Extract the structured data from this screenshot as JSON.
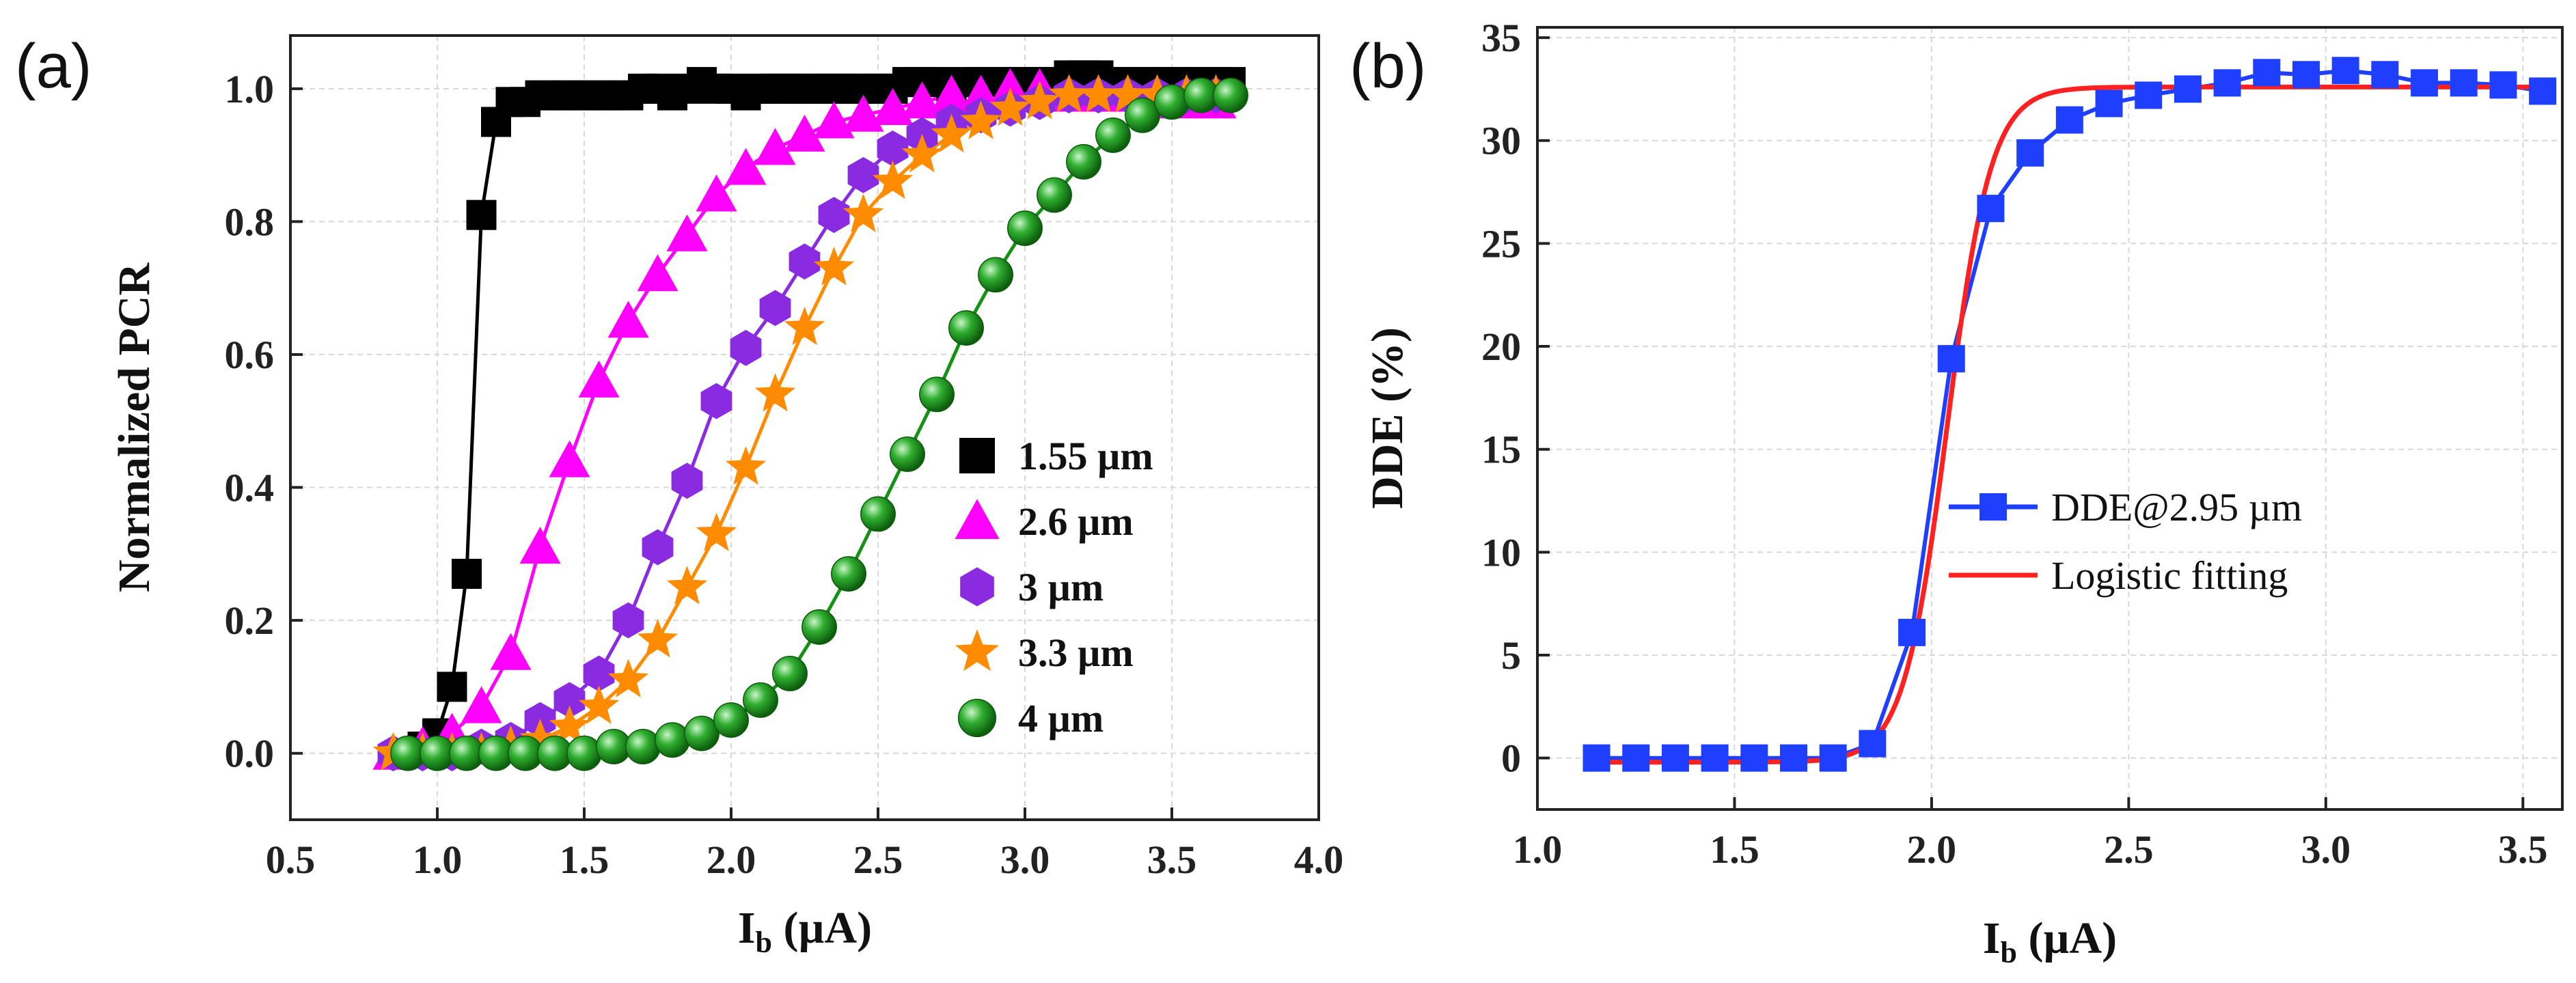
{
  "chart_data": [
    {
      "panel": "(a)",
      "type": "line",
      "xlabel_main": "I",
      "xlabel_sub": "b",
      "xlabel_unit": " (µA)",
      "ylabel": "Normalized PCR",
      "xlim": [
        0.5,
        4.0
      ],
      "ylim": [
        -0.1,
        1.08
      ],
      "xticks": [
        "0.5",
        "1.0",
        "1.5",
        "2.0",
        "2.5",
        "3.0",
        "3.5",
        "4.0"
      ],
      "xtick_values": [
        0.5,
        1.0,
        1.5,
        2.0,
        2.5,
        3.0,
        3.5,
        4.0
      ],
      "yticks": [
        "0.0",
        "0.2",
        "0.4",
        "0.6",
        "0.8",
        "1.0"
      ],
      "ytick_values": [
        0.0,
        0.2,
        0.4,
        0.6,
        0.8,
        1.0
      ],
      "grid": true,
      "legend_position": "lower-right",
      "series": [
        {
          "name": "1.55 µm",
          "color": "#000000",
          "marker": "square",
          "x": [
            0.9,
            0.95,
            1.0,
            1.05,
            1.1,
            1.15,
            1.2,
            1.25,
            1.3,
            1.35,
            1.4,
            1.45,
            1.5,
            1.55,
            1.6,
            1.65,
            1.7,
            1.75,
            1.8,
            1.85,
            1.9,
            1.95,
            2.0,
            2.05,
            2.1,
            2.15,
            2.2,
            2.25,
            2.3,
            2.35,
            2.4,
            2.45,
            2.5,
            2.55,
            2.6,
            2.65,
            2.7,
            2.75,
            2.8,
            2.85,
            2.9,
            2.95,
            3.0,
            3.05,
            3.1,
            3.15,
            3.2,
            3.25,
            3.3,
            3.35,
            3.4,
            3.45,
            3.5,
            3.55,
            3.6,
            3.65,
            3.7
          ],
          "y": [
            0.0,
            0.01,
            0.03,
            0.1,
            0.27,
            0.81,
            0.95,
            0.98,
            0.98,
            0.99,
            0.99,
            0.99,
            0.99,
            0.99,
            0.99,
            0.99,
            1.0,
            1.0,
            0.99,
            1.0,
            1.01,
            1.0,
            1.0,
            0.99,
            1.0,
            1.0,
            1.0,
            1.0,
            1.0,
            1.0,
            1.0,
            1.0,
            1.0,
            1.0,
            1.01,
            1.01,
            1.01,
            1.0,
            1.01,
            1.01,
            1.01,
            1.01,
            1.01,
            1.01,
            1.01,
            1.02,
            1.02,
            1.02,
            1.01,
            1.01,
            1.01,
            1.01,
            1.01,
            1.01,
            1.01,
            1.01,
            1.01
          ]
        },
        {
          "name": "2.6 µm",
          "color": "#ff00ff",
          "marker": "triangle",
          "x": [
            0.85,
            0.95,
            1.05,
            1.15,
            1.25,
            1.35,
            1.45,
            1.55,
            1.65,
            1.75,
            1.85,
            1.95,
            2.05,
            2.15,
            2.25,
            2.35,
            2.45,
            2.55,
            2.65,
            2.75,
            2.85,
            2.95,
            3.05,
            3.15,
            3.25,
            3.35,
            3.45,
            3.55,
            3.65
          ],
          "y": [
            0.0,
            0.01,
            0.03,
            0.07,
            0.15,
            0.31,
            0.44,
            0.56,
            0.65,
            0.72,
            0.78,
            0.84,
            0.88,
            0.91,
            0.93,
            0.95,
            0.96,
            0.97,
            0.98,
            0.99,
            0.99,
            1.0,
            1.0,
            0.99,
            0.99,
            0.99,
            0.98,
            0.98,
            0.98
          ]
        },
        {
          "name": "3 µm",
          "color": "#8a2be2",
          "marker": "hexagon",
          "x": [
            0.85,
            0.95,
            1.05,
            1.15,
            1.25,
            1.35,
            1.45,
            1.55,
            1.65,
            1.75,
            1.85,
            1.95,
            2.05,
            2.15,
            2.25,
            2.35,
            2.45,
            2.55,
            2.65,
            2.75,
            2.85,
            2.95,
            3.05,
            3.15,
            3.25,
            3.35,
            3.45,
            3.55,
            3.65
          ],
          "y": [
            0.0,
            0.0,
            0.0,
            0.01,
            0.02,
            0.05,
            0.08,
            0.12,
            0.2,
            0.31,
            0.41,
            0.53,
            0.61,
            0.67,
            0.74,
            0.81,
            0.87,
            0.91,
            0.93,
            0.95,
            0.96,
            0.97,
            0.98,
            0.99,
            0.99,
            0.99,
            0.99,
            0.99,
            0.99
          ]
        },
        {
          "name": "3.3 µm",
          "color": "#ff8c00",
          "marker": "star",
          "x": [
            0.85,
            0.95,
            1.05,
            1.15,
            1.25,
            1.35,
            1.45,
            1.55,
            1.65,
            1.75,
            1.85,
            1.95,
            2.05,
            2.15,
            2.25,
            2.35,
            2.45,
            2.55,
            2.65,
            2.75,
            2.85,
            2.95,
            3.05,
            3.15,
            3.25,
            3.35,
            3.45,
            3.55,
            3.65
          ],
          "y": [
            0.0,
            0.0,
            0.0,
            0.0,
            0.01,
            0.02,
            0.04,
            0.07,
            0.11,
            0.17,
            0.25,
            0.33,
            0.43,
            0.54,
            0.64,
            0.73,
            0.81,
            0.86,
            0.9,
            0.93,
            0.95,
            0.97,
            0.98,
            0.99,
            0.99,
            0.99,
            0.99,
            0.99,
            0.99
          ]
        },
        {
          "name": "4 µm",
          "color": "#149214",
          "marker": "sphere",
          "x": [
            0.9,
            1.0,
            1.1,
            1.2,
            1.3,
            1.4,
            1.5,
            1.6,
            1.7,
            1.8,
            1.9,
            2.0,
            2.1,
            2.2,
            2.3,
            2.4,
            2.5,
            2.6,
            2.7,
            2.8,
            2.9,
            3.0,
            3.1,
            3.2,
            3.3,
            3.4,
            3.5,
            3.6,
            3.7
          ],
          "y": [
            0.0,
            0.0,
            0.0,
            0.0,
            0.0,
            0.0,
            0.0,
            0.01,
            0.01,
            0.02,
            0.03,
            0.05,
            0.08,
            0.12,
            0.19,
            0.27,
            0.36,
            0.45,
            0.54,
            0.64,
            0.72,
            0.79,
            0.84,
            0.89,
            0.93,
            0.96,
            0.98,
            0.99,
            0.99
          ]
        }
      ]
    },
    {
      "panel": "(b)",
      "type": "line",
      "xlabel_main": "I",
      "xlabel_sub": "b",
      "xlabel_unit": " (µA)",
      "ylabel": "DDE (%)",
      "xlim": [
        1.0,
        3.6
      ],
      "ylim": [
        -2.5,
        35.5
      ],
      "xticks": [
        "1.0",
        "1.5",
        "2.0",
        "2.5",
        "3.0",
        "3.5"
      ],
      "xtick_values": [
        1.0,
        1.5,
        2.0,
        2.5,
        3.0,
        3.5
      ],
      "yticks": [
        "0",
        "5",
        "10",
        "15",
        "20",
        "25",
        "30",
        "35"
      ],
      "ytick_values": [
        0,
        5,
        10,
        15,
        20,
        25,
        30,
        35
      ],
      "grid": true,
      "legend_position": "center-right",
      "series": [
        {
          "name": "DDE@2.95 µm",
          "color": "#1f3fff",
          "marker": "square",
          "x": [
            1.15,
            1.25,
            1.35,
            1.45,
            1.55,
            1.65,
            1.75,
            1.85,
            1.95,
            2.05,
            2.15,
            2.25,
            2.35,
            2.45,
            2.55,
            2.65,
            2.75,
            2.85,
            2.95,
            3.05,
            3.15,
            3.25,
            3.35,
            3.45,
            3.55
          ],
          "y": [
            0.0,
            0.0,
            0.0,
            0.0,
            0.0,
            0.0,
            0.0,
            0.7,
            6.1,
            19.4,
            26.7,
            29.4,
            31.0,
            31.8,
            32.2,
            32.5,
            32.8,
            33.3,
            33.2,
            33.4,
            33.2,
            32.8,
            32.8,
            32.7,
            32.4
          ]
        },
        {
          "name": "Logistic fitting",
          "color": "#ff2020",
          "marker": "none",
          "model": "logistic",
          "params": {
            "A1": -0.2,
            "A2": 32.6,
            "x0": 2.04,
            "k": 18
          },
          "x_range": [
            1.15,
            3.55
          ]
        }
      ]
    }
  ]
}
